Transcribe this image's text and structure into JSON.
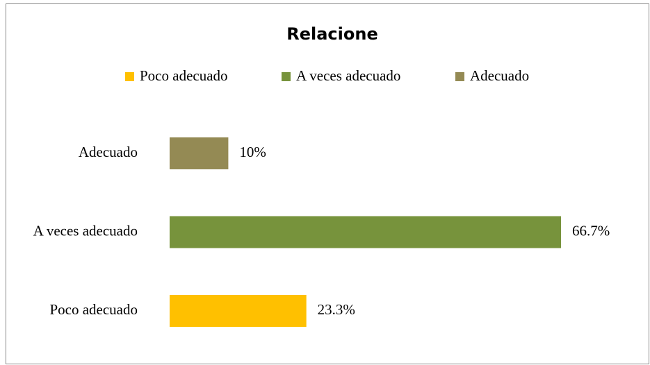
{
  "chart_data": {
    "type": "hbar",
    "title": "Relacione",
    "categories": [
      "Poco adecuado",
      "A veces adecuado",
      "Adecuado"
    ],
    "values": [
      23.3,
      66.7,
      10
    ],
    "value_labels": [
      "23.3%",
      "66.7%",
      "10%"
    ],
    "colors": [
      "#ffc000",
      "#77933c",
      "#948a54"
    ],
    "legend": "top"
  }
}
